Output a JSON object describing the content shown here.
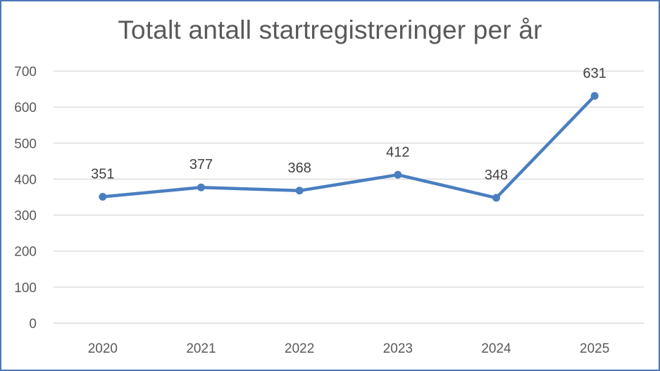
{
  "chart_data": {
    "type": "line",
    "title": "Totalt antall startregistreringer per år",
    "categories": [
      "2020",
      "2021",
      "2022",
      "2023",
      "2024",
      "2025"
    ],
    "series": [
      {
        "values": [
          351,
          377,
          368,
          412,
          348,
          631
        ]
      }
    ],
    "ylim": [
      0,
      700
    ],
    "yticks": [
      0,
      100,
      200,
      300,
      400,
      500,
      600,
      700
    ],
    "data_labels": true,
    "grid": true,
    "legend": "none",
    "colors": {
      "series": "#4a7ec0",
      "grid": "#d9d9d9",
      "text": "#595959",
      "border": "#4a78b8"
    }
  }
}
